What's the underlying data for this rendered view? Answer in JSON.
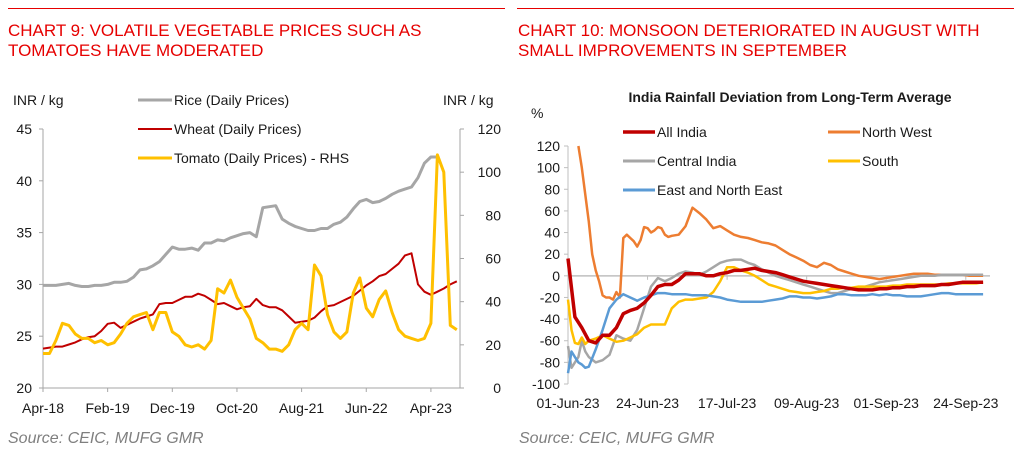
{
  "left_panel": {
    "title_line1": "CHART 9: VOLATILE VEGETABLE PRICES SUCH AS",
    "title_line2": "TOMATOES HAVE MODERATED",
    "source": "Source: CEIC, MUFG GMR"
  },
  "right_panel": {
    "title_line1": "CHART 10: MONSOON DETERIORATED IN AUGUST WITH",
    "title_line2": "SMALL IMPROVEMENTS IN SEPTEMBER",
    "source": "Source: CEIC, MUFG GMR"
  },
  "chart_data": [
    {
      "type": "line",
      "title": "",
      "ylabel": "INR / kg",
      "y2label": "INR / kg",
      "xlabel": "",
      "ylim": [
        20,
        45
      ],
      "y2lim": [
        0,
        120
      ],
      "yticks": [
        "45",
        "40",
        "35",
        "30",
        "25",
        "20"
      ],
      "y2ticks": [
        "120",
        "100",
        "80",
        "60",
        "40",
        "20",
        "0"
      ],
      "x_tick_labels": [
        "Apr-18",
        "Feb-19",
        "Dec-19",
        "Oct-20",
        "Aug-21",
        "Jun-22",
        "Apr-23"
      ],
      "x_tick_index": [
        0,
        10,
        20,
        30,
        40,
        50,
        60
      ],
      "grid": false,
      "legend_position": "top-center",
      "colors": {
        "rice": "#a6a6a6",
        "wheat": "#c00000",
        "tomato": "#ffc000"
      },
      "series": [
        {
          "name": "Rice  (Daily Prices)",
          "axis": "left",
          "color": "#a6a6a6",
          "values": [
            29.9,
            29.9,
            29.9,
            30.0,
            30.1,
            29.9,
            29.8,
            29.8,
            29.9,
            29.9,
            30.0,
            30.2,
            30.2,
            30.3,
            30.7,
            31.4,
            31.5,
            31.8,
            32.2,
            32.9,
            33.6,
            33.4,
            33.4,
            33.5,
            33.3,
            34.0,
            34.0,
            34.3,
            34.2,
            34.5,
            34.7,
            34.9,
            35.0,
            34.6,
            37.4,
            37.5,
            37.6,
            36.3,
            35.9,
            35.6,
            35.4,
            35.2,
            35.2,
            35.4,
            35.4,
            35.8,
            36.0,
            36.5,
            37.3,
            38.0,
            38.2,
            37.9,
            38.0,
            38.3,
            38.7,
            39.0,
            39.2,
            39.4,
            40.3,
            41.7,
            42.3,
            42.3
          ]
        },
        {
          "name": "Wheat (Daily Prices)",
          "axis": "left",
          "color": "#c00000",
          "values": [
            23.8,
            23.9,
            24.0,
            24.0,
            24.2,
            24.4,
            24.7,
            24.9,
            25.0,
            25.5,
            26.2,
            26.3,
            25.8,
            26.1,
            26.4,
            26.7,
            26.9,
            27.1,
            28.1,
            28.2,
            28.2,
            28.5,
            28.8,
            28.8,
            29.1,
            28.9,
            28.5,
            28.1,
            28.2,
            27.9,
            27.6,
            27.8,
            27.9,
            28.6,
            28.0,
            27.8,
            27.8,
            27.5,
            26.9,
            26.3,
            26.4,
            26.5,
            26.8,
            27.4,
            27.9,
            28.0,
            28.3,
            28.6,
            28.9,
            29.4,
            29.9,
            30.3,
            30.8,
            31.0,
            31.5,
            32.0,
            32.8,
            33.0,
            30.0,
            29.3,
            29.0,
            29.3,
            29.6,
            30.0,
            30.3
          ]
        },
        {
          "name": "Tomato (Daily Prices) - RHS",
          "axis": "right",
          "color": "#ffc000",
          "values": [
            16,
            16,
            22,
            30,
            29,
            25,
            23,
            23,
            21,
            22,
            20,
            21,
            25,
            30,
            33,
            34,
            35,
            27,
            35,
            35,
            26,
            24,
            20,
            19,
            20,
            18,
            22,
            46,
            44,
            50,
            42,
            37,
            32,
            23,
            21,
            18,
            18,
            17,
            20,
            27,
            30,
            27,
            57,
            52,
            34,
            26,
            23,
            26,
            44,
            51,
            37,
            33,
            41,
            45,
            35,
            27,
            24,
            23,
            22,
            23,
            30,
            108,
            100,
            29,
            27
          ]
        }
      ]
    },
    {
      "type": "line",
      "title": "India Rainfall Deviation from Long-Term Average",
      "ylabel": "%",
      "xlabel": "",
      "ylim": [
        -100,
        120
      ],
      "yticks": [
        "120",
        "100",
        "80",
        "60",
        "40",
        "20",
        "0",
        "-20",
        "-40",
        "-60",
        "-80",
        "-100"
      ],
      "x_tick_labels": [
        "01-Jun-23",
        "24-Jun-23",
        "17-Jul-23",
        "09-Aug-23",
        "01-Sep-23",
        "24-Sep-23"
      ],
      "x_range_days": [
        0,
        122
      ],
      "x_tick_days": [
        0,
        23,
        46,
        69,
        92,
        115
      ],
      "grid": false,
      "legend_position": "top",
      "series": [
        {
          "name": "All India",
          "color": "#c00000",
          "days": [
            0,
            2,
            4,
            6,
            8,
            10,
            12,
            14,
            16,
            18,
            20,
            22,
            24,
            26,
            28,
            30,
            32,
            34,
            36,
            38,
            40,
            42,
            44,
            46,
            48,
            50,
            52,
            54,
            56,
            58,
            60,
            62,
            64,
            66,
            68,
            70,
            72,
            74,
            76,
            78,
            80,
            82,
            84,
            86,
            88,
            90,
            92,
            94,
            96,
            98,
            100,
            102,
            104,
            106,
            108,
            110,
            112,
            114,
            116,
            118,
            120
          ],
          "values": [
            16,
            -38,
            -48,
            -60,
            -62,
            -55,
            -55,
            -48,
            -35,
            -32,
            -30,
            -25,
            -18,
            -10,
            -8,
            -8,
            -4,
            2,
            2,
            2,
            0,
            0,
            2,
            3,
            5,
            5,
            6,
            7,
            5,
            4,
            3,
            1,
            -1,
            -3,
            -5,
            -6,
            -7,
            -8,
            -9,
            -10,
            -11,
            -12,
            -13,
            -13,
            -13,
            -12,
            -12,
            -11,
            -11,
            -10,
            -10,
            -9,
            -9,
            -9,
            -8,
            -8,
            -7,
            -6,
            -6,
            -6,
            -6
          ]
        },
        {
          "name": "North West",
          "color": "#ed7d31",
          "days": [
            3,
            4,
            5,
            6,
            7,
            8,
            9,
            10,
            11,
            12,
            13,
            14,
            15,
            16,
            17,
            18,
            19,
            20,
            21,
            22,
            23,
            24,
            25,
            26,
            27,
            28,
            29,
            30,
            32,
            34,
            36,
            38,
            40,
            42,
            44,
            46,
            48,
            50,
            52,
            54,
            56,
            58,
            60,
            62,
            64,
            66,
            68,
            70,
            72,
            74,
            76,
            78,
            80,
            82,
            84,
            86,
            88,
            90,
            92,
            94,
            96,
            98,
            100,
            102,
            104,
            106,
            108,
            110,
            112,
            114,
            116,
            118,
            120
          ],
          "values": [
            120,
            100,
            75,
            50,
            20,
            5,
            -5,
            -18,
            -20,
            -20,
            -22,
            -15,
            -20,
            35,
            38,
            35,
            32,
            27,
            33,
            45,
            44,
            40,
            42,
            45,
            44,
            38,
            36,
            37,
            38,
            46,
            63,
            58,
            52,
            44,
            46,
            42,
            38,
            36,
            35,
            33,
            31,
            30,
            28,
            24,
            20,
            17,
            14,
            10,
            8,
            12,
            10,
            6,
            4,
            2,
            0,
            -1,
            -2,
            -3,
            -2,
            -1,
            0,
            1,
            2,
            2,
            2,
            1,
            1,
            1,
            1,
            1,
            0,
            0,
            0
          ]
        },
        {
          "name": "Central India",
          "color": "#a6a6a6",
          "days": [
            0,
            1,
            2,
            3,
            4,
            5,
            6,
            8,
            10,
            12,
            14,
            16,
            18,
            20,
            22,
            24,
            26,
            28,
            30,
            32,
            34,
            36,
            38,
            40,
            42,
            44,
            46,
            48,
            50,
            52,
            54,
            56,
            58,
            60,
            62,
            64,
            66,
            68,
            70,
            72,
            74,
            76,
            78,
            80,
            82,
            84,
            86,
            88,
            90,
            92,
            94,
            96,
            98,
            100,
            102,
            104,
            106,
            108,
            110,
            112,
            114,
            116,
            118,
            120
          ],
          "values": [
            -65,
            -85,
            -80,
            -75,
            -60,
            -70,
            -75,
            -80,
            -78,
            -73,
            -55,
            -58,
            -60,
            -50,
            -30,
            -10,
            -2,
            -5,
            -2,
            2,
            4,
            3,
            1,
            4,
            8,
            12,
            14,
            15,
            15,
            12,
            10,
            6,
            3,
            0,
            -2,
            -4,
            -6,
            -8,
            -10,
            -12,
            -14,
            -16,
            -16,
            -14,
            -12,
            -11,
            -10,
            -8,
            -6,
            -5,
            -4,
            -3,
            -2,
            -1,
            0,
            0,
            0,
            1,
            1,
            1,
            1,
            1,
            1,
            1
          ]
        },
        {
          "name": "South",
          "color": "#ffc000",
          "days": [
            0,
            1,
            2,
            3,
            4,
            5,
            6,
            8,
            10,
            12,
            14,
            16,
            18,
            20,
            22,
            24,
            26,
            28,
            30,
            32,
            34,
            36,
            38,
            40,
            42,
            44,
            46,
            48,
            50,
            52,
            54,
            56,
            58,
            60,
            62,
            64,
            66,
            68,
            70,
            72,
            74,
            76,
            78,
            80,
            82,
            84,
            86,
            88,
            90,
            92,
            94,
            96,
            98,
            100,
            102,
            104,
            106,
            108,
            110,
            112,
            114,
            116,
            118,
            120
          ],
          "values": [
            -22,
            -50,
            -62,
            -63,
            -57,
            -63,
            -60,
            -58,
            -55,
            -58,
            -61,
            -60,
            -57,
            -54,
            -48,
            -45,
            -45,
            -45,
            -30,
            -24,
            -22,
            -22,
            -21,
            -20,
            -15,
            -5,
            8,
            8,
            5,
            3,
            0,
            -4,
            -8,
            -10,
            -12,
            -14,
            -15,
            -16,
            -16,
            -15,
            -14,
            -12,
            -12,
            -11,
            -11,
            -10,
            -10,
            -10,
            -10,
            -10,
            -9,
            -9,
            -8,
            -8,
            -8,
            -8,
            -8,
            -8,
            -7,
            -7,
            -7,
            -7,
            -7,
            -6
          ]
        },
        {
          "name": "East and North East",
          "color": "#5b9bd5",
          "days": [
            0,
            1,
            2,
            3,
            4,
            5,
            6,
            8,
            10,
            12,
            14,
            16,
            18,
            20,
            22,
            24,
            26,
            28,
            30,
            32,
            34,
            36,
            38,
            40,
            42,
            44,
            46,
            48,
            50,
            52,
            54,
            56,
            58,
            60,
            62,
            64,
            66,
            68,
            70,
            72,
            74,
            76,
            78,
            80,
            82,
            84,
            86,
            88,
            90,
            92,
            94,
            96,
            98,
            100,
            102,
            104,
            106,
            108,
            110,
            112,
            114,
            116,
            118,
            120
          ],
          "values": [
            -90,
            -70,
            -75,
            -80,
            -82,
            -85,
            -84,
            -68,
            -50,
            -30,
            -22,
            -17,
            -20,
            -23,
            -20,
            -18,
            -16,
            -16,
            -17,
            -17,
            -17,
            -18,
            -18,
            -18,
            -19,
            -20,
            -22,
            -23,
            -24,
            -24,
            -24,
            -24,
            -23,
            -22,
            -21,
            -19,
            -19,
            -20,
            -20,
            -21,
            -20,
            -19,
            -17,
            -17,
            -18,
            -18,
            -18,
            -17,
            -18,
            -17,
            -18,
            -18,
            -19,
            -19,
            -19,
            -18,
            -17,
            -16,
            -16,
            -17,
            -17,
            -17,
            -17,
            -17
          ]
        }
      ]
    }
  ]
}
